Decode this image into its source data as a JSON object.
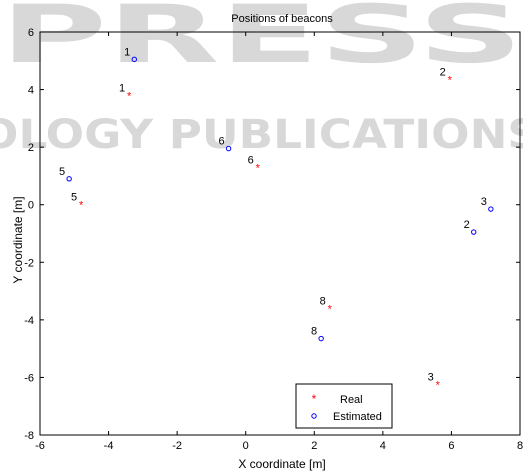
{
  "chart_data": {
    "type": "scatter",
    "title": "Positions of beacons",
    "xlabel": "X coordinate [m]",
    "ylabel": "Y coordinate [m]",
    "xlim": [
      -6,
      8
    ],
    "ylim": [
      -8,
      6
    ],
    "xticks": [
      -6,
      -4,
      -2,
      0,
      2,
      4,
      6,
      8
    ],
    "yticks": [
      -8,
      -6,
      -4,
      -2,
      0,
      2,
      4,
      6
    ],
    "grid": false,
    "legend_position": "bottom-right",
    "series": [
      {
        "name": "Real",
        "marker": "*",
        "color": "#ff0000",
        "points": [
          {
            "label": "1",
            "x": -3.4,
            "y": 3.8
          },
          {
            "label": "2",
            "x": 5.95,
            "y": 4.35
          },
          {
            "label": "3",
            "x": 5.6,
            "y": -6.25
          },
          {
            "label": "5",
            "x": -4.8,
            "y": 0.0
          },
          {
            "label": "6",
            "x": 0.35,
            "y": 1.3
          },
          {
            "label": "8",
            "x": 2.45,
            "y": -3.6
          }
        ]
      },
      {
        "name": "Estimated",
        "marker": "o",
        "color": "#0000ff",
        "points": [
          {
            "label": "1",
            "x": -3.25,
            "y": 5.05
          },
          {
            "label": "2",
            "x": 6.65,
            "y": -0.95
          },
          {
            "label": "3",
            "x": 7.15,
            "y": -0.15
          },
          {
            "label": "5",
            "x": -5.15,
            "y": 0.9
          },
          {
            "label": "6",
            "x": -0.5,
            "y": 1.95
          },
          {
            "label": "8",
            "x": 2.2,
            "y": -4.65
          }
        ]
      }
    ]
  },
  "watermark": {
    "line1": "PRESS",
    "line2": "OLOGY PUBLICATIONS"
  }
}
